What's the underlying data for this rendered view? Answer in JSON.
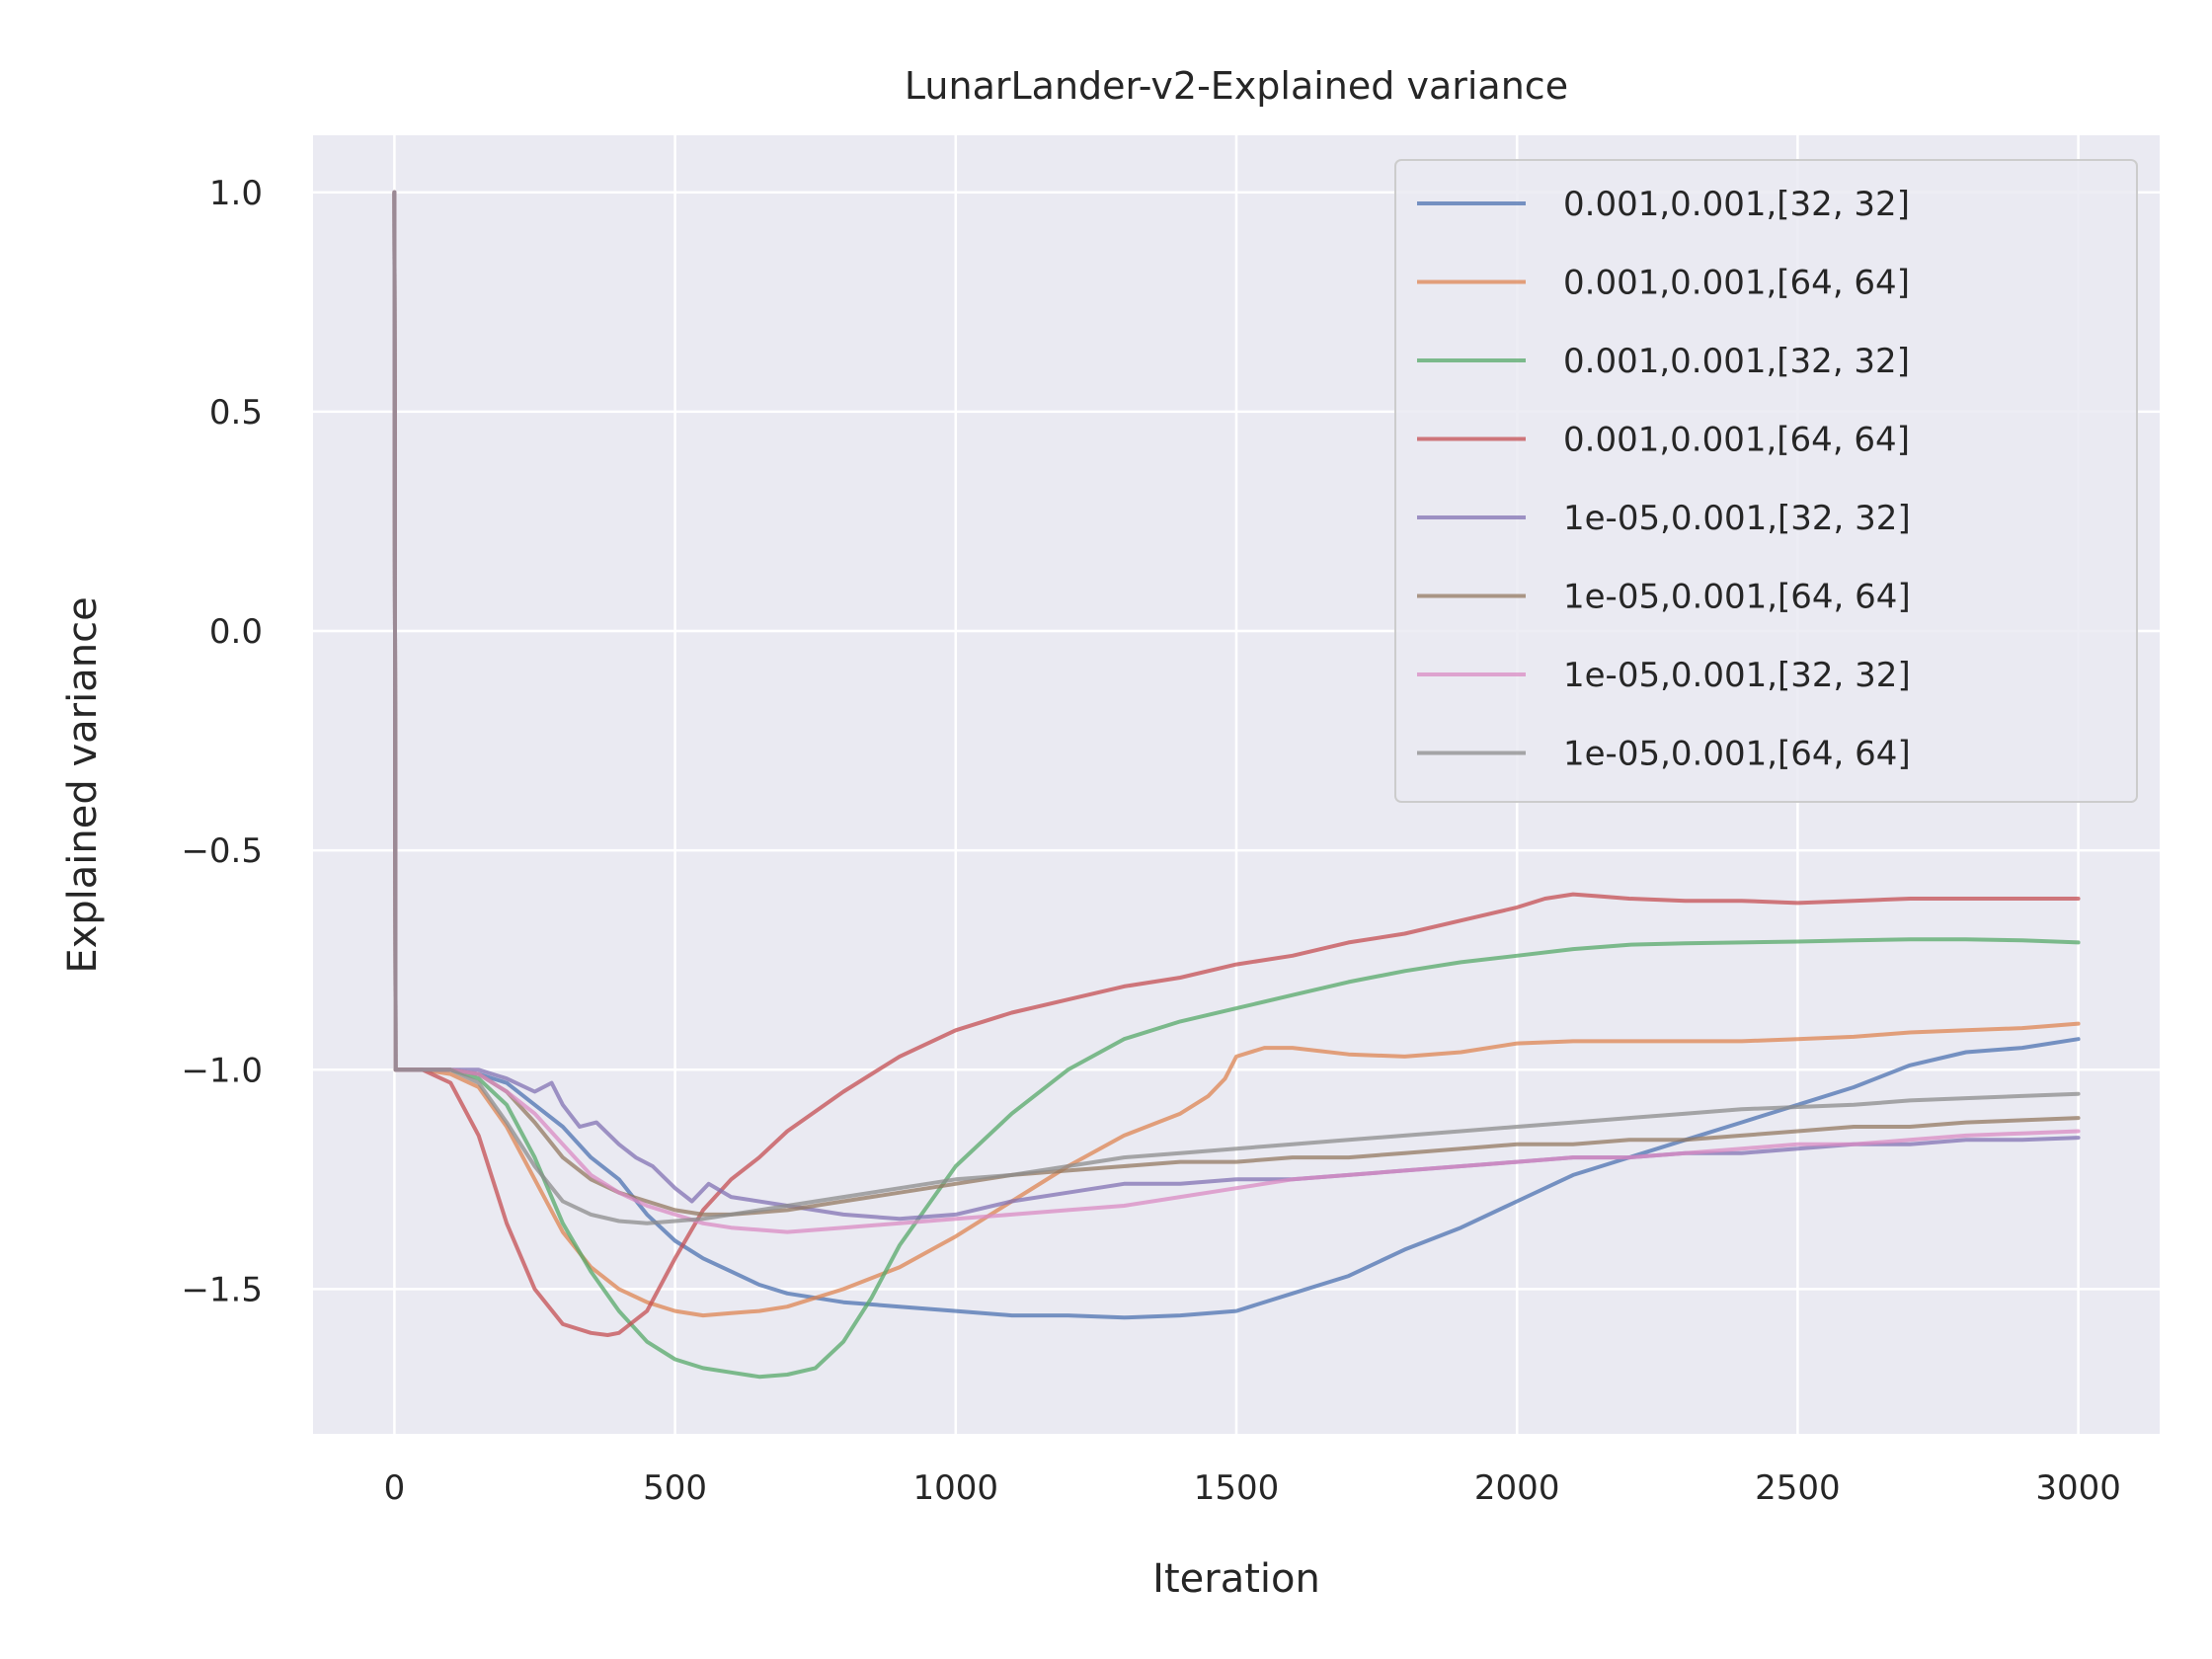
{
  "chart_data": {
    "type": "line",
    "title": "LunarLander-v2-Explained variance",
    "xlabel": "Iteration",
    "ylabel": "Explained variance",
    "xlim": [
      -145,
      3145
    ],
    "ylim": [
      -1.83,
      1.13
    ],
    "xticks": [
      0,
      500,
      1000,
      1500,
      2000,
      2500,
      3000
    ],
    "xtick_labels": [
      "0",
      "500",
      "1000",
      "1500",
      "2000",
      "2500",
      "3000"
    ],
    "yticks": [
      1.0,
      0.5,
      0.0,
      -0.5,
      -1.0,
      -1.5
    ],
    "ytick_labels": [
      "1.0",
      "0.5",
      "0.0",
      "−0.5",
      "−1.0",
      "−1.5"
    ],
    "grid": true,
    "legend_position": "top-right",
    "series": [
      {
        "name": "0.001,0.001,[32, 32]",
        "color": "#4c72b0",
        "x": [
          0,
          2,
          50,
          100,
          150,
          200,
          250,
          300,
          350,
          400,
          450,
          500,
          550,
          600,
          650,
          700,
          800,
          900,
          1000,
          1100,
          1200,
          1300,
          1400,
          1500,
          1600,
          1700,
          1800,
          1900,
          2000,
          2100,
          2200,
          2300,
          2400,
          2500,
          2600,
          2700,
          2800,
          2900,
          3000
        ],
        "y": [
          1.0,
          -1.0,
          -1.0,
          -1.0,
          -1.01,
          -1.03,
          -1.08,
          -1.13,
          -1.2,
          -1.25,
          -1.33,
          -1.39,
          -1.43,
          -1.46,
          -1.49,
          -1.51,
          -1.53,
          -1.54,
          -1.55,
          -1.56,
          -1.56,
          -1.565,
          -1.56,
          -1.55,
          -1.51,
          -1.47,
          -1.41,
          -1.36,
          -1.3,
          -1.24,
          -1.2,
          -1.16,
          -1.12,
          -1.08,
          -1.04,
          -0.99,
          -0.96,
          -0.95,
          -0.93
        ]
      },
      {
        "name": "0.001,0.001,[64, 64]",
        "color": "#dd8452",
        "x": [
          0,
          2,
          50,
          100,
          150,
          200,
          250,
          300,
          350,
          400,
          450,
          500,
          550,
          600,
          650,
          700,
          800,
          900,
          1000,
          1100,
          1200,
          1300,
          1400,
          1450,
          1480,
          1500,
          1550,
          1600,
          1700,
          1800,
          1900,
          2000,
          2100,
          2200,
          2300,
          2400,
          2500,
          2600,
          2700,
          2800,
          2900,
          3000
        ],
        "y": [
          1.0,
          -1.0,
          -1.0,
          -1.01,
          -1.04,
          -1.13,
          -1.25,
          -1.37,
          -1.45,
          -1.5,
          -1.53,
          -1.55,
          -1.56,
          -1.555,
          -1.55,
          -1.54,
          -1.5,
          -1.45,
          -1.38,
          -1.3,
          -1.22,
          -1.15,
          -1.1,
          -1.06,
          -1.02,
          -0.97,
          -0.95,
          -0.95,
          -0.965,
          -0.97,
          -0.96,
          -0.94,
          -0.935,
          -0.935,
          -0.935,
          -0.935,
          -0.93,
          -0.925,
          -0.915,
          -0.91,
          -0.905,
          -0.895
        ]
      },
      {
        "name": "0.001,0.001,[32, 32]",
        "color": "#55a868",
        "x": [
          0,
          2,
          50,
          100,
          150,
          200,
          250,
          300,
          350,
          400,
          450,
          500,
          550,
          600,
          650,
          700,
          750,
          800,
          850,
          900,
          1000,
          1100,
          1200,
          1300,
          1400,
          1500,
          1600,
          1700,
          1800,
          1900,
          2000,
          2100,
          2200,
          2300,
          2400,
          2500,
          2600,
          2700,
          2800,
          2900,
          3000
        ],
        "y": [
          1.0,
          -1.0,
          -1.0,
          -1.0,
          -1.02,
          -1.08,
          -1.2,
          -1.35,
          -1.46,
          -1.55,
          -1.62,
          -1.66,
          -1.68,
          -1.69,
          -1.7,
          -1.695,
          -1.68,
          -1.62,
          -1.52,
          -1.4,
          -1.22,
          -1.1,
          -1.0,
          -0.93,
          -0.89,
          -0.86,
          -0.83,
          -0.8,
          -0.775,
          -0.755,
          -0.74,
          -0.725,
          -0.715,
          -0.712,
          -0.71,
          -0.708,
          -0.705,
          -0.703,
          -0.703,
          -0.705,
          -0.71
        ]
      },
      {
        "name": "0.001,0.001,[64, 64]",
        "color": "#c44e52",
        "x": [
          0,
          2,
          50,
          100,
          150,
          200,
          250,
          300,
          350,
          380,
          400,
          450,
          500,
          550,
          600,
          650,
          700,
          800,
          900,
          1000,
          1100,
          1200,
          1300,
          1400,
          1500,
          1600,
          1700,
          1800,
          1900,
          2000,
          2050,
          2100,
          2150,
          2200,
          2300,
          2400,
          2500,
          2600,
          2700,
          2800,
          2900,
          3000
        ],
        "y": [
          1.0,
          -1.0,
          -1.0,
          -1.03,
          -1.15,
          -1.35,
          -1.5,
          -1.58,
          -1.6,
          -1.605,
          -1.6,
          -1.55,
          -1.43,
          -1.32,
          -1.25,
          -1.2,
          -1.14,
          -1.05,
          -0.97,
          -0.91,
          -0.87,
          -0.84,
          -0.81,
          -0.79,
          -0.76,
          -0.74,
          -0.71,
          -0.69,
          -0.66,
          -0.63,
          -0.61,
          -0.6,
          -0.605,
          -0.61,
          -0.615,
          -0.615,
          -0.62,
          -0.615,
          -0.61,
          -0.61,
          -0.61,
          -0.61
        ]
      },
      {
        "name": "1e-05,0.001,[32, 32]",
        "color": "#8172b3",
        "x": [
          0,
          2,
          50,
          100,
          150,
          200,
          250,
          280,
          300,
          330,
          360,
          400,
          430,
          460,
          500,
          530,
          560,
          600,
          700,
          800,
          900,
          1000,
          1100,
          1200,
          1300,
          1400,
          1500,
          1600,
          1700,
          1800,
          1900,
          2000,
          2100,
          2200,
          2300,
          2400,
          2500,
          2600,
          2700,
          2800,
          2900,
          3000
        ],
        "y": [
          1.0,
          -1.0,
          -1.0,
          -1.0,
          -1.0,
          -1.02,
          -1.05,
          -1.03,
          -1.08,
          -1.13,
          -1.12,
          -1.17,
          -1.2,
          -1.22,
          -1.27,
          -1.3,
          -1.26,
          -1.29,
          -1.31,
          -1.33,
          -1.34,
          -1.33,
          -1.3,
          -1.28,
          -1.26,
          -1.26,
          -1.25,
          -1.25,
          -1.24,
          -1.23,
          -1.22,
          -1.21,
          -1.2,
          -1.2,
          -1.19,
          -1.19,
          -1.18,
          -1.17,
          -1.17,
          -1.16,
          -1.16,
          -1.155
        ]
      },
      {
        "name": "1e-05,0.001,[64, 64]",
        "color": "#937860",
        "x": [
          0,
          2,
          50,
          100,
          150,
          200,
          250,
          300,
          350,
          400,
          450,
          500,
          550,
          600,
          700,
          800,
          900,
          1000,
          1100,
          1200,
          1300,
          1400,
          1500,
          1600,
          1700,
          1800,
          1900,
          2000,
          2100,
          2200,
          2300,
          2400,
          2500,
          2600,
          2700,
          2800,
          2900,
          3000
        ],
        "y": [
          1.0,
          -1.0,
          -1.0,
          -1.0,
          -1.01,
          -1.05,
          -1.12,
          -1.2,
          -1.25,
          -1.28,
          -1.3,
          -1.32,
          -1.33,
          -1.33,
          -1.32,
          -1.3,
          -1.28,
          -1.26,
          -1.24,
          -1.23,
          -1.22,
          -1.21,
          -1.21,
          -1.2,
          -1.2,
          -1.19,
          -1.18,
          -1.17,
          -1.17,
          -1.16,
          -1.16,
          -1.15,
          -1.14,
          -1.13,
          -1.13,
          -1.12,
          -1.115,
          -1.11
        ]
      },
      {
        "name": "1e-05,0.001,[32, 32]",
        "color": "#da8bc3",
        "x": [
          0,
          2,
          50,
          100,
          150,
          200,
          250,
          300,
          350,
          400,
          450,
          500,
          550,
          600,
          700,
          800,
          900,
          1000,
          1100,
          1200,
          1300,
          1400,
          1500,
          1600,
          1700,
          1800,
          1900,
          2000,
          2100,
          2200,
          2300,
          2400,
          2500,
          2600,
          2700,
          2800,
          2900,
          3000
        ],
        "y": [
          1.0,
          -1.0,
          -1.0,
          -1.0,
          -1.01,
          -1.05,
          -1.1,
          -1.17,
          -1.24,
          -1.28,
          -1.31,
          -1.33,
          -1.35,
          -1.36,
          -1.37,
          -1.36,
          -1.35,
          -1.34,
          -1.33,
          -1.32,
          -1.31,
          -1.29,
          -1.27,
          -1.25,
          -1.24,
          -1.23,
          -1.22,
          -1.21,
          -1.2,
          -1.2,
          -1.19,
          -1.18,
          -1.17,
          -1.17,
          -1.16,
          -1.15,
          -1.145,
          -1.14
        ]
      },
      {
        "name": "1e-05,0.001,[64, 64]",
        "color": "#8c8c8c",
        "x": [
          0,
          2,
          50,
          100,
          150,
          200,
          250,
          300,
          350,
          400,
          450,
          500,
          550,
          600,
          700,
          800,
          900,
          1000,
          1100,
          1200,
          1300,
          1400,
          1500,
          1600,
          1700,
          1800,
          1900,
          2000,
          2100,
          2200,
          2300,
          2400,
          2500,
          2600,
          2700,
          2800,
          2900,
          3000
        ],
        "y": [
          1.0,
          -1.0,
          -1.0,
          -1.0,
          -1.03,
          -1.12,
          -1.22,
          -1.3,
          -1.33,
          -1.345,
          -1.35,
          -1.345,
          -1.34,
          -1.33,
          -1.31,
          -1.29,
          -1.27,
          -1.25,
          -1.24,
          -1.22,
          -1.2,
          -1.19,
          -1.18,
          -1.17,
          -1.16,
          -1.15,
          -1.14,
          -1.13,
          -1.12,
          -1.11,
          -1.1,
          -1.09,
          -1.085,
          -1.08,
          -1.07,
          -1.065,
          -1.06,
          -1.055
        ]
      }
    ]
  }
}
